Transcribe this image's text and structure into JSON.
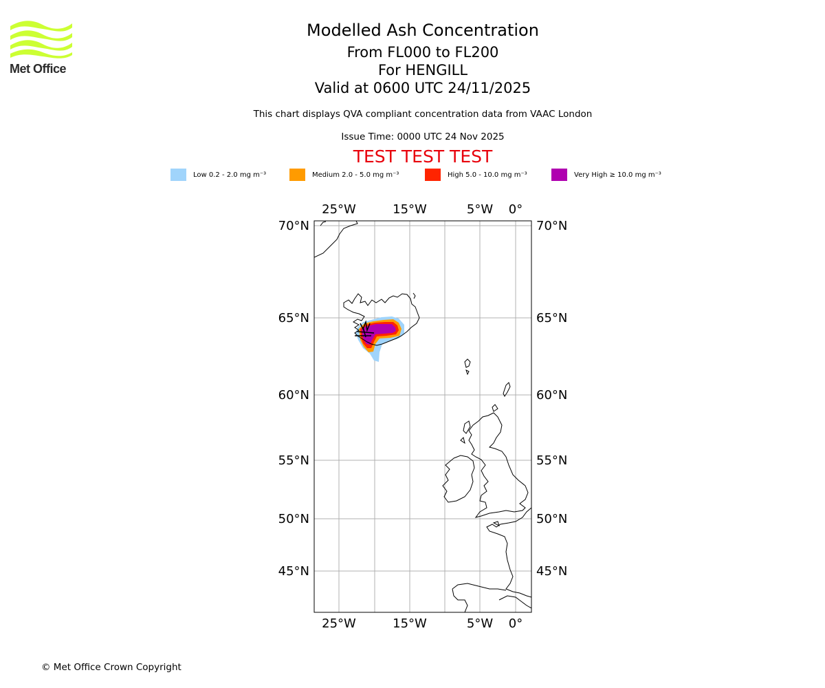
{
  "logo": {
    "text": "Met Office",
    "icon": "met-office-wave-logo",
    "color": "#ccff33"
  },
  "header": {
    "title": "Modelled Ash Concentration",
    "level": "From FL000 to FL200",
    "volcano": "For HENGILL",
    "valid": "Valid at 0600 UTC 24/11/2025",
    "description": "This chart displays QVA compliant concentration data from VAAC London",
    "issue_time": "Issue Time: 0000 UTC 24 Nov 2025",
    "test_banner": "TEST TEST TEST",
    "test_color": "#e8000b"
  },
  "legend": [
    {
      "label": "Low 0.2 - 2.0 mg m⁻³",
      "color": "#a0d4fb"
    },
    {
      "label": "Medium 2.0 - 5.0 mg m⁻³",
      "color": "#ff9b00"
    },
    {
      "label": "High 5.0 - 10.0 mg m⁻³",
      "color": "#ff2400"
    },
    {
      "label": "Very High ≥ 10.0 mg m⁻³",
      "color": "#b000b0"
    }
  ],
  "map": {
    "lon_ticks": [
      "25°W",
      "15°W",
      "5°W",
      "0°"
    ],
    "lat_ticks": [
      "70°N",
      "65°N",
      "60°N",
      "55°N",
      "50°N",
      "45°N"
    ],
    "volcano_marker": "hengill-volcano-marker"
  },
  "footer": {
    "copyright": "© Met Office Crown Copyright"
  }
}
